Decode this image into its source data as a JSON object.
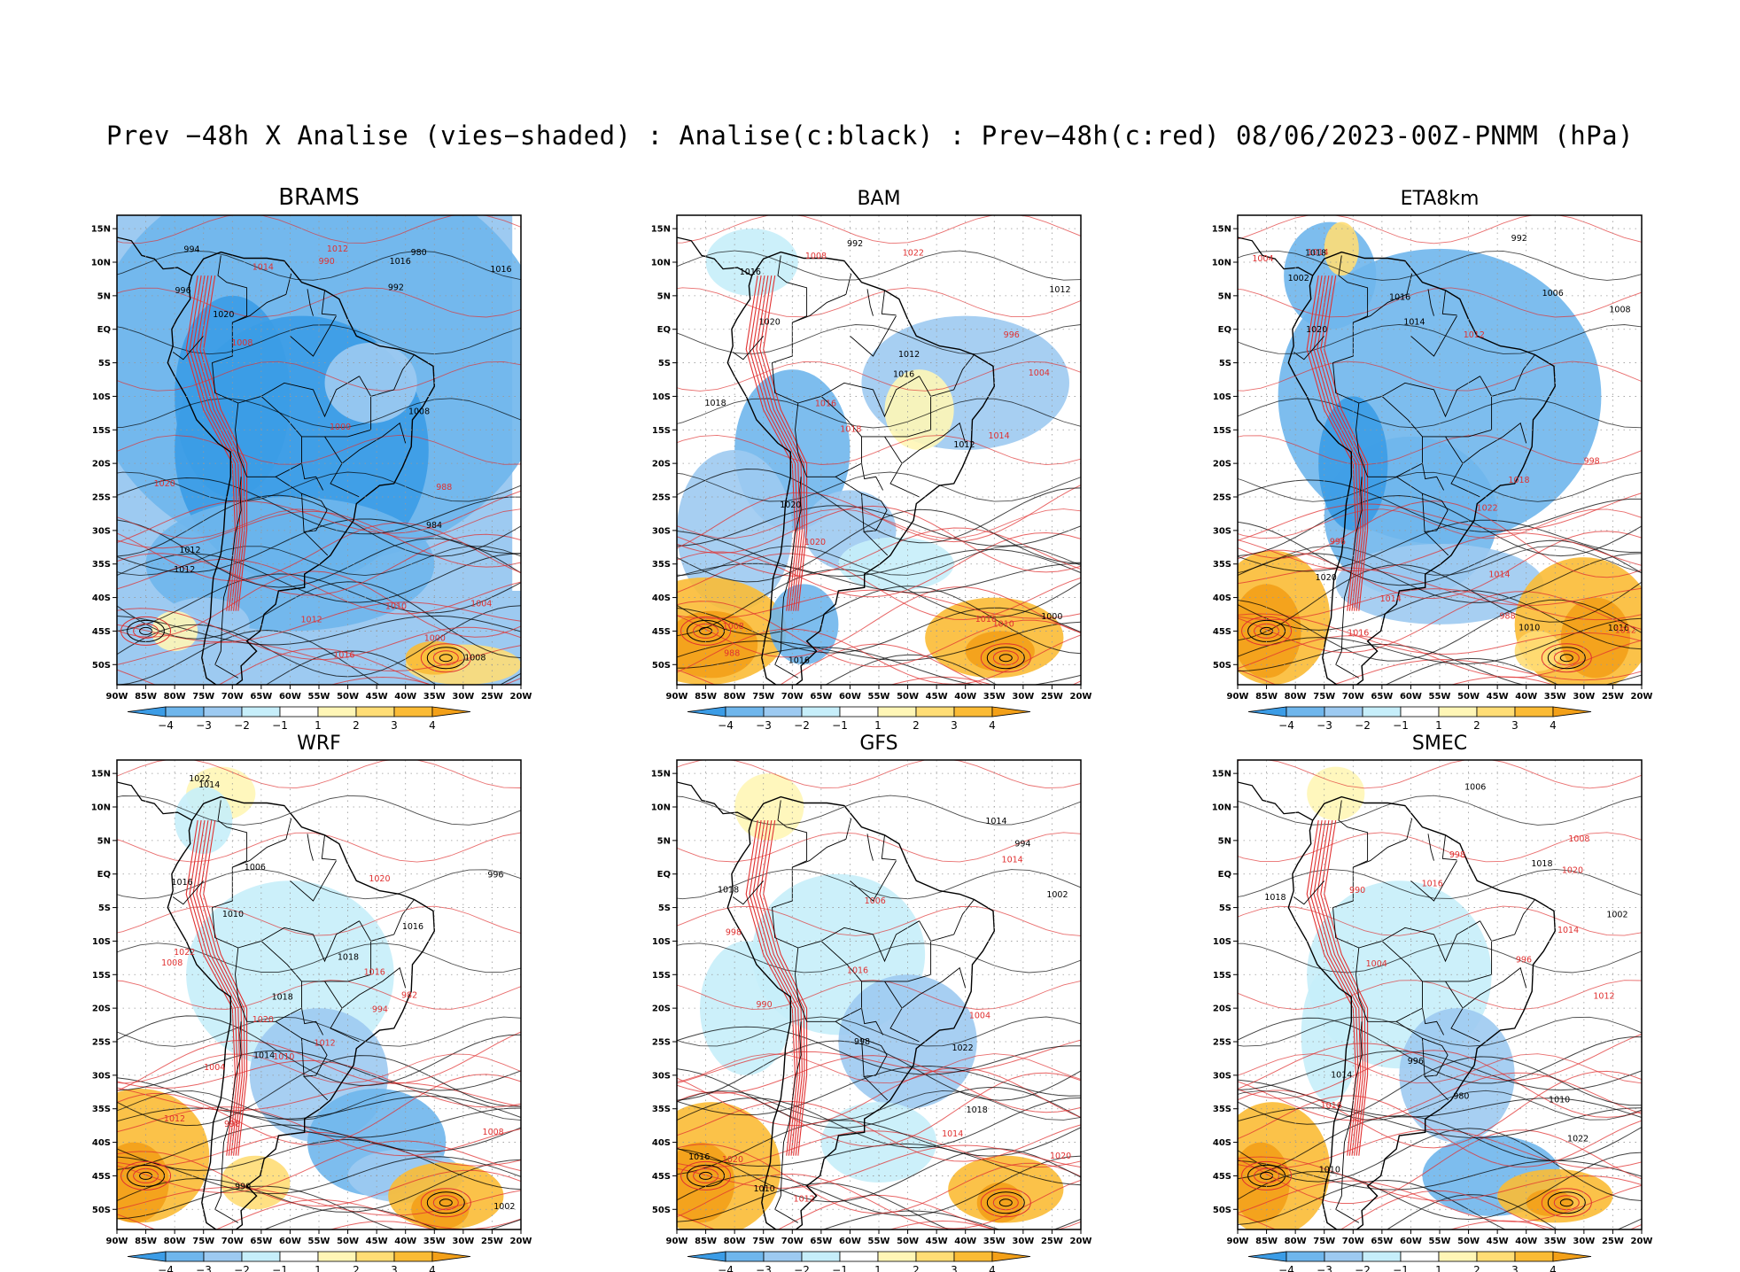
{
  "title": "Prev −48h X Analise (vies−shaded) : Analise(c:black) : Prev−48h(c:red) 08/06/2023-00Z-PNMM (hPa)",
  "panel_titles": [
    "BRAMS",
    "BAM",
    "ETA8km",
    "WRF",
    "GFS",
    "SMEC"
  ],
  "lon_labels": [
    "90W",
    "85W",
    "80W",
    "75W",
    "70W",
    "65W",
    "60W",
    "55W",
    "50W",
    "45W",
    "40W",
    "35W",
    "30W",
    "25W",
    "20W"
  ],
  "lat_labels": [
    "15N",
    "10N",
    "5N",
    "EQ",
    "5S",
    "10S",
    "15S",
    "20S",
    "25S",
    "30S",
    "35S",
    "40S",
    "45S",
    "50S"
  ],
  "colorbar": {
    "tick_labels": [
      "−4",
      "−3",
      "−2",
      "−1",
      "1",
      "2",
      "3",
      "4"
    ],
    "colors": [
      "#3b9ce6",
      "#6fb6ec",
      "#9dcaf1",
      "#c6eefa",
      "#ffffff",
      "#fff6b6",
      "#ffdd75",
      "#fbbb35",
      "#f3a018"
    ]
  },
  "contour_colors": {
    "analysis": "#000000",
    "forecast": "#e03030"
  },
  "chart_data": [
    {
      "type": "heatmap",
      "title": "BRAMS",
      "variable": "PNMM bias (hPa)",
      "ylim": [
        -53,
        17
      ],
      "xlim": [
        -90,
        -20
      ],
      "contour_labels": [
        "1008",
        "1012",
        "1010",
        "1008",
        "1012",
        "1016",
        "1020",
        "1012",
        "1016",
        "1020",
        "1000",
        "996",
        "1004",
        "1008",
        "1012",
        "1016",
        "1014",
        "992",
        "988",
        "984",
        "1000",
        "994",
        "990",
        "980"
      ]
    },
    {
      "type": "heatmap",
      "title": "BAM",
      "variable": "PNMM bias (hPa)",
      "ylim": [
        -53,
        17
      ],
      "xlim": [
        -90,
        -20
      ],
      "contour_labels": [
        "1008",
        "1016",
        "1016",
        "1012",
        "1014",
        "1012",
        "1010",
        "1016",
        "1018",
        "1020",
        "1022",
        "1016",
        "1020",
        "1018",
        "1008",
        "1012",
        "1016",
        "1020",
        "1004",
        "1000",
        "996",
        "992",
        "988"
      ]
    },
    {
      "type": "heatmap",
      "title": "ETA8km",
      "variable": "PNMM bias (hPa)",
      "ylim": [
        -53,
        17
      ],
      "xlim": [
        -90,
        -20
      ],
      "contour_labels": [
        "1014",
        "1016",
        "1012",
        "1016",
        "1014",
        "1010",
        "1012",
        "1014",
        "1016",
        "1020",
        "1022",
        "1018",
        "1018",
        "1020",
        "1014",
        "1008",
        "996",
        "1006",
        "1004",
        "1002",
        "998",
        "992",
        "988"
      ]
    },
    {
      "type": "heatmap",
      "title": "WRF",
      "variable": "PNMM bias (hPa)",
      "ylim": [
        -53,
        17
      ],
      "xlim": [
        -90,
        -20
      ],
      "contour_labels": [
        "1010",
        "1018",
        "1016",
        "1014",
        "1012",
        "1016",
        "1020",
        "1018",
        "1022",
        "1016",
        "1020",
        "1022",
        "1008",
        "1006",
        "1004",
        "996",
        "994",
        "1014",
        "1012",
        "1010",
        "1008",
        "1002",
        "998",
        "990",
        "982"
      ]
    },
    {
      "type": "heatmap",
      "title": "GFS",
      "variable": "PNMM bias (hPa)",
      "ylim": [
        -53,
        17
      ],
      "xlim": [
        -90,
        -20
      ],
      "contour_labels": [
        "1016",
        "1014",
        "1012",
        "1016",
        "1014",
        "1018",
        "1020",
        "1022",
        "1020",
        "1018",
        "1014",
        "1010",
        "1006",
        "998",
        "1004",
        "1002",
        "998",
        "994",
        "990"
      ]
    },
    {
      "type": "heatmap",
      "title": "SMEC",
      "variable": "PNMM bias (hPa)",
      "ylim": [
        -53,
        17
      ],
      "xlim": [
        -90,
        -20
      ],
      "contour_labels": [
        "1016",
        "1014",
        "1012",
        "1010",
        "1016",
        "1018",
        "1020",
        "1022",
        "1014",
        "1018",
        "996",
        "1010",
        "1008",
        "1006",
        "1004",
        "1002",
        "998",
        "996",
        "990",
        "980"
      ]
    }
  ]
}
